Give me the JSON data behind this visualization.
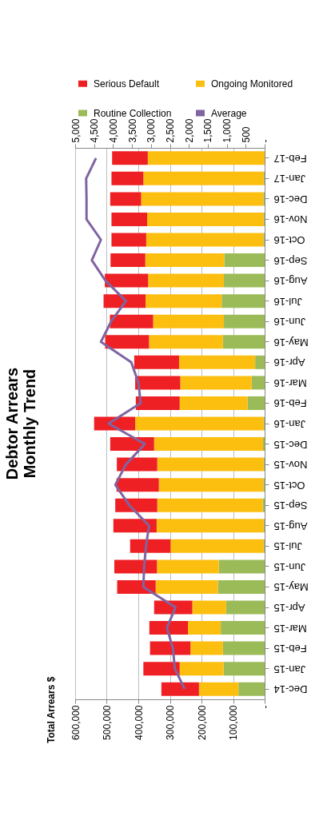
{
  "chart_data": {
    "type": "bar",
    "orientation": "horizontal",
    "stacked": true,
    "title": "Debtor Arrears\nMonthly Trend",
    "annotations": [
      "Total Arrears $"
    ],
    "categories": [
      "Feb-17",
      "Jan-17",
      "Dec-16",
      "Nov-16",
      "Oct-16",
      "Sep-16",
      "Aug-16",
      "Jul-16",
      "Jun-16",
      "May-16",
      "Apr-16",
      "Mar-16",
      "Feb-16",
      "Jan-16",
      "Dec-15",
      "Nov-15",
      "Oct-15",
      "Sep-15",
      "Aug-15",
      "Jul-15",
      "Jun-15",
      "May-15",
      "Apr-15",
      "Mar-15",
      "Feb-15",
      "Jan-15",
      "Dec-14"
    ],
    "series": [
      {
        "name": "Routine Collection",
        "color": "#9bbb59",
        "values": [
          null,
          3000,
          4000,
          3000,
          4000,
          128000,
          129000,
          136000,
          129000,
          132000,
          30000,
          41000,
          54000,
          3000,
          5000,
          3000,
          4000,
          6000,
          3000,
          3000,
          145000,
          148000,
          122000,
          139000,
          132000,
          130000,
          83000
        ]
      },
      {
        "name": "Ongoing Monitored",
        "color": "#fcbf10",
        "values": [
          370000,
          381000,
          387000,
          369000,
          371000,
          250000,
          240000,
          241000,
          224000,
          234000,
          241000,
          226000,
          215000,
          407000,
          345000,
          337000,
          331000,
          334000,
          339000,
          295000,
          196000,
          197000,
          107000,
          104000,
          103000,
          139000,
          125000
        ]
      },
      {
        "name": "Serious Default",
        "color": "#ee2024",
        "values": [
          113000,
          101000,
          98000,
          113000,
          110000,
          110000,
          137000,
          133000,
          137000,
          139000,
          142000,
          143000,
          139000,
          130000,
          139000,
          128000,
          134000,
          133000,
          137000,
          128000,
          135000,
          122000,
          121000,
          122000,
          128000,
          115000,
          119000
        ]
      },
      {
        "name": "Average",
        "color": "#8064a2",
        "type": "line",
        "axis": "x2",
        "values": [
          4450,
          4710,
          4700,
          4700,
          4320,
          4560,
          4200,
          3660,
          4050,
          4320,
          3520,
          3330,
          3270,
          4120,
          3160,
          3660,
          3940,
          3570,
          3050,
          3130,
          3180,
          3200,
          2350,
          2580,
          2420,
          2370,
          2110
        ]
      }
    ],
    "xlim": [
      600000,
      0
    ],
    "xticks": [
      {
        "value": 600000,
        "label": "600,000"
      },
      {
        "value": 500000,
        "label": "500,000"
      },
      {
        "value": 400000,
        "label": "400,000"
      },
      {
        "value": 300000,
        "label": "300,000"
      },
      {
        "value": 200000,
        "label": "200,000"
      },
      {
        "value": 100000,
        "label": "100,000"
      },
      {
        "value": 0,
        "label": "-"
      }
    ],
    "x2lim": [
      5000,
      0
    ],
    "x2ticks": [
      {
        "value": 5000,
        "label": "5,000"
      },
      {
        "value": 4500,
        "label": "4,500"
      },
      {
        "value": 4000,
        "label": "4,000"
      },
      {
        "value": 3500,
        "label": "3,500"
      },
      {
        "value": 3000,
        "label": "3,000"
      },
      {
        "value": 2500,
        "label": "2,500"
      },
      {
        "value": 2000,
        "label": "2,000"
      },
      {
        "value": 1500,
        "label": "1,500"
      },
      {
        "value": 1000,
        "label": "1,000"
      },
      {
        "value": 500,
        "label": "500"
      },
      {
        "value": 0,
        "label": "-"
      }
    ],
    "grid": "x",
    "legend": "top"
  }
}
